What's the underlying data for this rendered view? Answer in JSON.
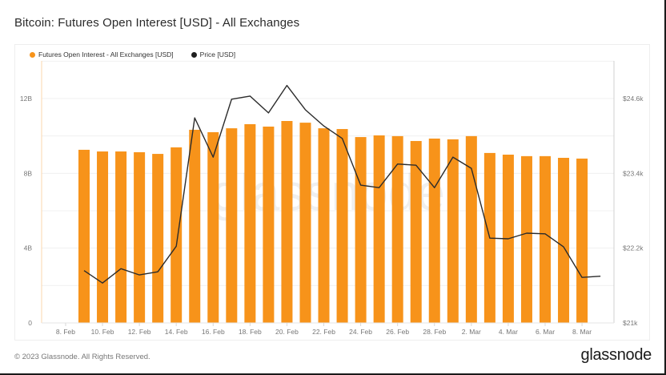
{
  "title": "Bitcoin: Futures Open Interest [USD] - All Exchanges",
  "legend": [
    {
      "label": "Futures Open Interest - All Exchanges [USD]",
      "color": "#f7931a"
    },
    {
      "label": "Price [USD]",
      "color": "#1f1f1f"
    }
  ],
  "footer": {
    "copyright": "© 2023 Glassnode. All Rights Reserved.",
    "logo": "glassnode"
  },
  "watermark": "glassnode",
  "colors": {
    "bar": "#f7931a",
    "line": "#2b2b2b",
    "grid": "#f0f0f0",
    "left_axis": "#fbd7ae",
    "right_axis": "#d0d0d0"
  },
  "chart_data": {
    "type": "bar+line",
    "title": "Bitcoin: Futures Open Interest [USD] - All Exchanges",
    "xlabel": "",
    "ylabel_left": "Futures Open Interest [USD]",
    "ylabel_right": "Price [USD]",
    "ylim_left": [
      0,
      12000000000
    ],
    "ylim_right": [
      21000,
      24600
    ],
    "left_ticks": [
      "0",
      "4B",
      "8B",
      "12B"
    ],
    "right_ticks": [
      "$21k",
      "$22.2k",
      "$23.4k",
      "$24.6k"
    ],
    "x_ticks": [
      "8. Feb",
      "10. Feb",
      "12. Feb",
      "14. Feb",
      "16. Feb",
      "18. Feb",
      "20. Feb",
      "22. Feb",
      "24. Feb",
      "26. Feb",
      "28. Feb",
      "2. Mar",
      "4. Mar",
      "6. Mar",
      "8. Mar"
    ],
    "grid": true,
    "legend_position": "top-left",
    "categories": [
      "9 Feb",
      "10 Feb",
      "11 Feb",
      "12 Feb",
      "13 Feb",
      "14 Feb",
      "15 Feb",
      "16 Feb",
      "17 Feb",
      "18 Feb",
      "19 Feb",
      "20 Feb",
      "21 Feb",
      "22 Feb",
      "23 Feb",
      "24 Feb",
      "25 Feb",
      "26 Feb",
      "27 Feb",
      "28 Feb",
      "1 Mar",
      "2 Mar",
      "3 Mar",
      "4 Mar",
      "5 Mar",
      "6 Mar",
      "7 Mar",
      "8 Mar"
    ],
    "series": [
      {
        "name": "Futures Open Interest - All Exchanges [USD]",
        "type": "bar",
        "axis": "left",
        "unit": "B USD",
        "values": [
          9.26,
          9.17,
          9.17,
          9.13,
          9.04,
          9.39,
          10.33,
          10.2,
          10.41,
          10.63,
          10.5,
          10.8,
          10.71,
          10.41,
          10.37,
          9.94,
          10.03,
          9.99,
          9.73,
          9.86,
          9.82,
          9.99,
          9.09,
          9.0,
          8.92,
          8.92,
          8.83,
          8.79
        ]
      },
      {
        "name": "Price [USD]",
        "type": "line",
        "axis": "right",
        "unit": "USD",
        "values": [
          21840,
          21640,
          21870,
          21770,
          21820,
          22230,
          24290,
          23660,
          24590,
          24640,
          24370,
          24810,
          24420,
          24160,
          23960,
          23210,
          23170,
          23550,
          23530,
          23170,
          23660,
          23480,
          22360,
          22350,
          22440,
          22430,
          22220,
          21730
        ],
        "extra_point": {
          "date": "9 Mar",
          "value": 21750
        }
      }
    ]
  }
}
